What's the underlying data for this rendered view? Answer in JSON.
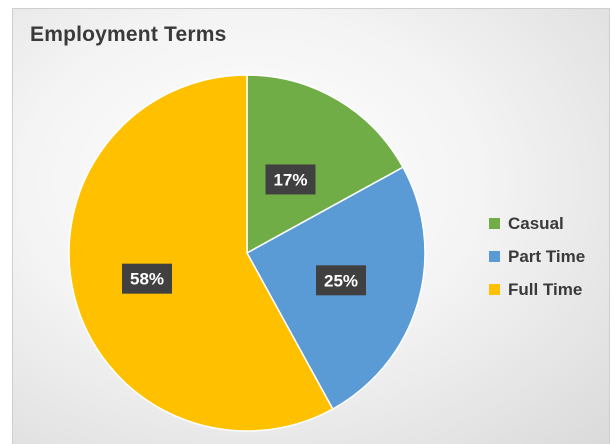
{
  "chart_data": {
    "type": "pie",
    "title": "Employment Terms",
    "categories": [
      "Casual",
      "Part Time",
      "Full Time"
    ],
    "values": [
      17,
      25,
      58
    ],
    "data_labels": [
      "17%",
      "25%",
      "58%"
    ],
    "colors": [
      "#70ad47",
      "#5b9bd5",
      "#ffc000"
    ],
    "start_angle": "12 o'clock, clockwise",
    "legend_position": "right"
  }
}
